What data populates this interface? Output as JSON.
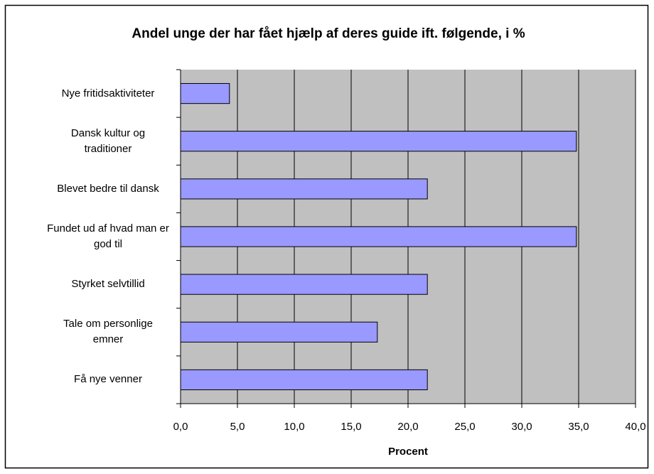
{
  "chart_data": {
    "type": "bar",
    "orientation": "horizontal",
    "title": "Andel unge der har fået hjælp af deres guide ift. følgende, i %",
    "xlabel": "Procent",
    "categories": [
      "Nye fritidsaktiviteter",
      "Dansk kultur og traditioner",
      "Blevet bedre til dansk",
      "Fundet ud af hvad man er god til",
      "Styrket selvtillid",
      "Tale om personlige emner",
      "Få nye venner"
    ],
    "values": [
      4.3,
      34.8,
      21.7,
      34.8,
      21.7,
      17.3,
      21.7
    ],
    "color": "#9999ff",
    "xlim": [
      0,
      40
    ],
    "xticks": [
      {
        "value": 0,
        "label": "0,0"
      },
      {
        "value": 5,
        "label": "5,0"
      },
      {
        "value": 10,
        "label": "10,0"
      },
      {
        "value": 15,
        "label": "15,0"
      },
      {
        "value": 20,
        "label": "20,0"
      },
      {
        "value": 25,
        "label": "25,0"
      },
      {
        "value": 30,
        "label": "30,0"
      },
      {
        "value": 35,
        "label": "35,0"
      },
      {
        "value": 40,
        "label": "40,0"
      }
    ],
    "grid": true
  }
}
